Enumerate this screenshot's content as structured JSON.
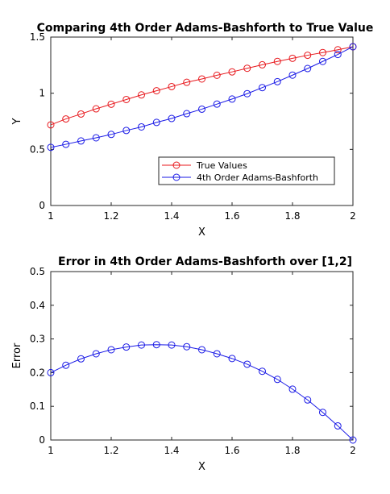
{
  "chart_data": [
    {
      "type": "line",
      "title": "Comparing 4th Order Adams-Bashforth to True Value",
      "xlabel": "X",
      "ylabel": "Y",
      "xlim": [
        1,
        2
      ],
      "ylim": [
        0,
        1.5
      ],
      "xticks": [
        1,
        1.2,
        1.4,
        1.6,
        1.8,
        2
      ],
      "xtick_labels": [
        "1",
        "1.2",
        "1.4",
        "1.6",
        "1.8",
        "2"
      ],
      "yticks": [
        0,
        0.5,
        1,
        1.5
      ],
      "ytick_labels": [
        "0",
        "0.5",
        "1",
        "1.5"
      ],
      "grid": false,
      "legend": "bottom-right",
      "x": [
        1.0,
        1.05,
        1.1,
        1.15,
        1.2,
        1.25,
        1.3,
        1.35,
        1.4,
        1.45,
        1.5,
        1.55,
        1.6,
        1.65,
        1.7,
        1.75,
        1.8,
        1.85,
        1.9,
        1.95,
        2.0
      ],
      "series": [
        {
          "name": "True Values",
          "color": "#e8191e",
          "marker": "circle",
          "values": [
            0.718,
            0.771,
            0.815,
            0.861,
            0.902,
            0.944,
            0.985,
            1.022,
            1.059,
            1.097,
            1.127,
            1.16,
            1.19,
            1.222,
            1.253,
            1.283,
            1.311,
            1.338,
            1.362,
            1.387,
            1.414
          ]
        },
        {
          "name": "4th Order Adams-Bashforth",
          "color": "#1a1ae6",
          "marker": "circle",
          "values": [
            0.518,
            0.545,
            0.575,
            0.603,
            0.633,
            0.668,
            0.7,
            0.74,
            0.775,
            0.818,
            0.858,
            0.903,
            0.948,
            0.996,
            1.05,
            1.103,
            1.161,
            1.22,
            1.283,
            1.345,
            1.414
          ]
        }
      ]
    },
    {
      "type": "line",
      "title": "Error in 4th Order Adams-Bashforth over [1,2]",
      "xlabel": "X",
      "ylabel": "Error",
      "xlim": [
        1,
        2
      ],
      "ylim": [
        0,
        0.5
      ],
      "xticks": [
        1,
        1.2,
        1.4,
        1.6,
        1.8,
        2
      ],
      "xtick_labels": [
        "1",
        "1.2",
        "1.4",
        "1.6",
        "1.8",
        "2"
      ],
      "yticks": [
        0,
        0.1,
        0.2,
        0.3,
        0.4,
        0.5
      ],
      "ytick_labels": [
        "0",
        "0.1",
        "0.2",
        "0.3",
        "0.4",
        "0.5"
      ],
      "grid": false,
      "x": [
        1.0,
        1.05,
        1.1,
        1.15,
        1.2,
        1.25,
        1.3,
        1.35,
        1.4,
        1.45,
        1.5,
        1.55,
        1.6,
        1.65,
        1.7,
        1.75,
        1.8,
        1.85,
        1.9,
        1.95,
        2.0
      ],
      "series": [
        {
          "name": "",
          "color": "#1a1ae6",
          "marker": "circle",
          "values": [
            0.2,
            0.222,
            0.241,
            0.256,
            0.268,
            0.276,
            0.282,
            0.283,
            0.282,
            0.277,
            0.268,
            0.256,
            0.242,
            0.225,
            0.204,
            0.18,
            0.151,
            0.119,
            0.082,
            0.042,
            0.0
          ]
        }
      ]
    }
  ]
}
